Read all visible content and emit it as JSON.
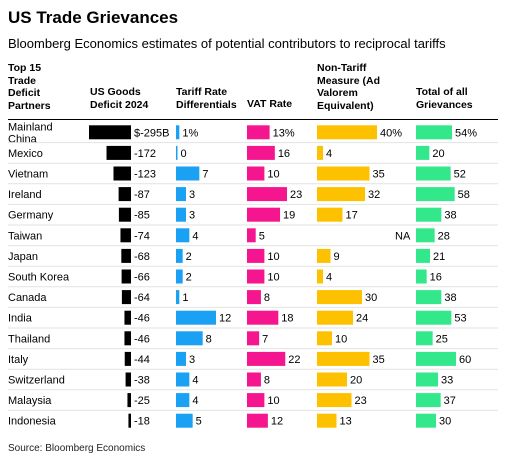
{
  "title": "US Trade Grievances",
  "subtitle": "Bloomberg Economics estimates of potential contributors to reciprocal tariffs",
  "source": "Source: Bloomberg Economics",
  "headers": {
    "partners": "Top 15\nTrade\nDeficit\nPartners",
    "deficit": "US Goods\nDeficit 2024",
    "tariff": "Tariff Rate\nDifferentials",
    "vat": "VAT Rate",
    "ntm": "Non-Tariff\nMeasure (Ad\nValorem\nEquivalent)",
    "total": "Total of all\nGrievances"
  },
  "colors": {
    "deficit": "#000000",
    "tariff": "#1aa1f4",
    "vat": "#f5158f",
    "ntm": "#fdc100",
    "total": "#33e88b"
  },
  "chart_data": {
    "type": "bar",
    "categories": [
      "Mainland China",
      "Mexico",
      "Vietnam",
      "Ireland",
      "Germany",
      "Taiwan",
      "Japan",
      "South Korea",
      "Canada",
      "India",
      "Thailand",
      "Italy",
      "Switzerland",
      "Malaysia",
      "Indonesia"
    ],
    "series": [
      {
        "name": "US Goods Deficit 2024",
        "values": [
          -295,
          -172,
          -123,
          -87,
          -85,
          -74,
          -68,
          -66,
          -64,
          -46,
          -46,
          -44,
          -38,
          -25,
          -18
        ],
        "labels": [
          "$-295B",
          "-172",
          "-123",
          "-87",
          "-85",
          "-74",
          "-68",
          "-66",
          "-64",
          "-46",
          "-46",
          "-44",
          "-38",
          "-25",
          "-18"
        ]
      },
      {
        "name": "Tariff Rate Differentials",
        "values": [
          1,
          0,
          7,
          3,
          3,
          4,
          2,
          2,
          1,
          12,
          8,
          3,
          4,
          4,
          5
        ],
        "labels": [
          "1%",
          "0",
          "7",
          "3",
          "3",
          "4",
          "2",
          "2",
          "1",
          "12",
          "8",
          "3",
          "4",
          "4",
          "5"
        ]
      },
      {
        "name": "VAT Rate",
        "values": [
          13,
          16,
          10,
          23,
          19,
          5,
          10,
          10,
          8,
          18,
          7,
          22,
          8,
          10,
          12
        ],
        "labels": [
          "13%",
          "16",
          "10",
          "23",
          "19",
          "5",
          "10",
          "10",
          "8",
          "18",
          "7",
          "22",
          "8",
          "10",
          "12"
        ]
      },
      {
        "name": "Non-Tariff Measure (Ad Valorem Equivalent)",
        "values": [
          40,
          4,
          35,
          32,
          17,
          null,
          9,
          4,
          30,
          24,
          10,
          35,
          20,
          23,
          13
        ],
        "labels": [
          "40%",
          "4",
          "35",
          "32",
          "17",
          "NA",
          "9",
          "4",
          "30",
          "24",
          "10",
          "35",
          "20",
          "23",
          "13"
        ]
      },
      {
        "name": "Total of all Grievances",
        "values": [
          54,
          20,
          52,
          58,
          38,
          28,
          21,
          16,
          38,
          53,
          25,
          60,
          33,
          37,
          30
        ],
        "labels": [
          "54%",
          "20",
          "52",
          "58",
          "38",
          "28",
          "21",
          "16",
          "38",
          "53",
          "25",
          "60",
          "33",
          "37",
          "30"
        ]
      }
    ]
  }
}
